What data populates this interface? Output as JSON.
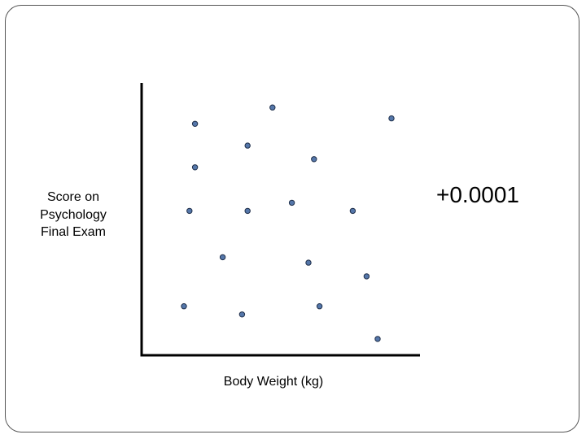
{
  "chart_data": {
    "type": "scatter",
    "xlabel": "Body Weight (kg)",
    "ylabel_lines": [
      "Score on",
      "Psychology",
      "Final Exam"
    ],
    "annotation": "+0.0001",
    "xlim": [
      0,
      10
    ],
    "ylim": [
      0,
      10
    ],
    "point_color": "#5577aa",
    "axis_color": "#000000",
    "points": [
      {
        "x": 1.9,
        "y": 8.5
      },
      {
        "x": 4.7,
        "y": 9.1
      },
      {
        "x": 9.0,
        "y": 8.7
      },
      {
        "x": 3.8,
        "y": 7.7
      },
      {
        "x": 6.2,
        "y": 7.2
      },
      {
        "x": 1.9,
        "y": 6.9
      },
      {
        "x": 5.4,
        "y": 5.6
      },
      {
        "x": 1.7,
        "y": 5.3
      },
      {
        "x": 3.8,
        "y": 5.3
      },
      {
        "x": 7.6,
        "y": 5.3
      },
      {
        "x": 2.9,
        "y": 3.6
      },
      {
        "x": 6.0,
        "y": 3.4
      },
      {
        "x": 8.1,
        "y": 2.9
      },
      {
        "x": 1.5,
        "y": 1.8
      },
      {
        "x": 3.6,
        "y": 1.5
      },
      {
        "x": 6.4,
        "y": 1.8
      },
      {
        "x": 8.5,
        "y": 0.6
      }
    ]
  }
}
